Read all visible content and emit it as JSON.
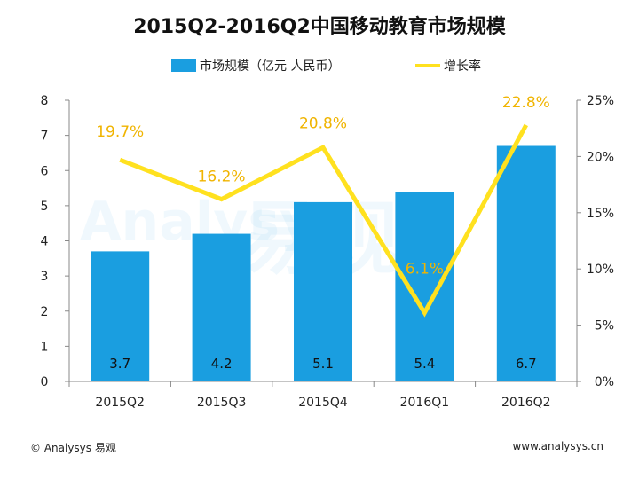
{
  "chart_data": {
    "type": "bar",
    "title": "2015Q2-2016Q2中国移动教育市场规模",
    "categories": [
      "2015Q2",
      "2015Q3",
      "2015Q4",
      "2016Q1",
      "2016Q2"
    ],
    "bar_series": {
      "name": "市场规模（亿元 人民币）",
      "values": [
        3.7,
        4.2,
        5.1,
        5.4,
        6.7
      ],
      "labels": [
        "3.7",
        "4.2",
        "5.1",
        "5.4",
        "6.7"
      ],
      "color": "#1a9ee0"
    },
    "line_series": {
      "name": "增长率",
      "values": [
        19.7,
        16.2,
        20.8,
        6.1,
        22.8
      ],
      "labels": [
        "19.7%",
        "16.2%",
        "20.8%",
        "6.1%",
        "22.8%"
      ],
      "color": "#ffe11f",
      "label_color": "#f0b400"
    },
    "y_left": {
      "min": 0,
      "max": 8,
      "ticks": [
        "0",
        "1",
        "2",
        "3",
        "4",
        "5",
        "6",
        "7",
        "8"
      ]
    },
    "y_right": {
      "min": 0,
      "max": 25,
      "ticks": [
        "0%",
        "5%",
        "10%",
        "15%",
        "20%",
        "25%"
      ]
    },
    "grid": false,
    "legend_position": "top"
  },
  "watermark": {
    "text": "易观",
    "brand": "Analysys"
  },
  "footer": {
    "copyright": "© Analysys 易观",
    "website": "www.analysys.cn"
  }
}
